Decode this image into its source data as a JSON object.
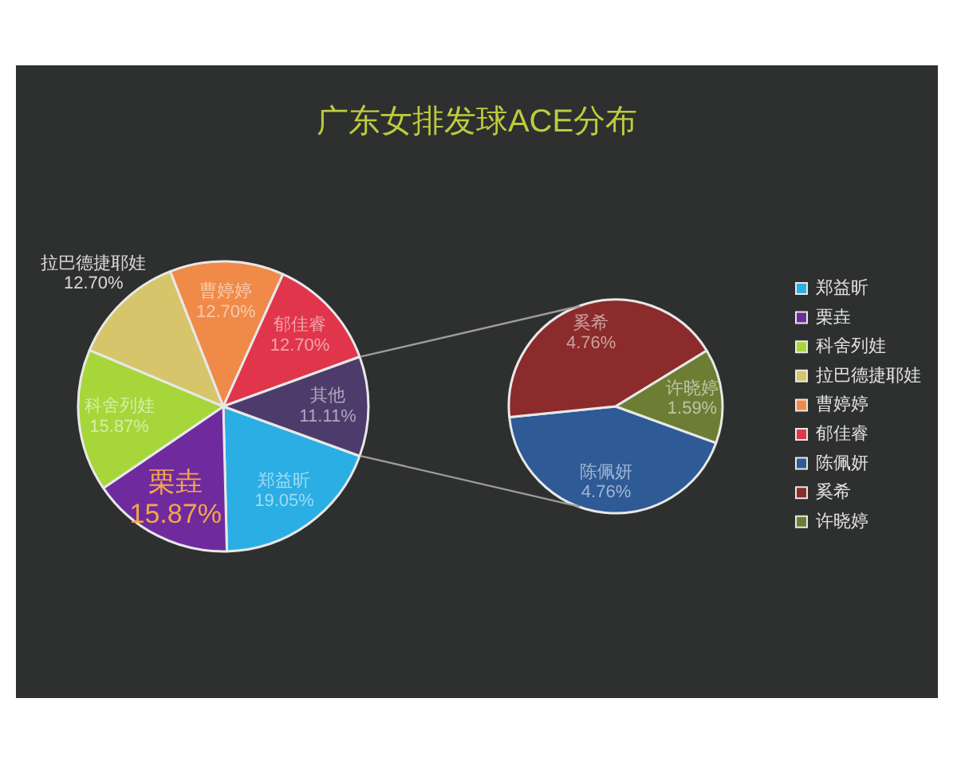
{
  "chart_data": [
    {
      "type": "pie",
      "title": "广东女排发球ACE分布",
      "categories": [
        "郑益昕",
        "栗垚",
        "科舍列娃",
        "拉巴德捷耶娃",
        "曹婷婷",
        "郁佳睿",
        "其他"
      ],
      "values": [
        19.05,
        15.87,
        15.87,
        12.7,
        12.7,
        12.7,
        11.11
      ],
      "colors": [
        "#2aaee4",
        "#6f2b9e",
        "#a6d63a",
        "#d6c56a",
        "#f08a48",
        "#e0354b",
        "#4c3b6b"
      ],
      "value_labels": [
        "19.05%",
        "15.87%",
        "15.87%",
        "12.70%",
        "12.70%",
        "12.70%",
        "11.11%"
      ],
      "legend": "right"
    },
    {
      "type": "pie",
      "categories": [
        "陈佩妍",
        "奚希",
        "许晓婷"
      ],
      "values": [
        4.76,
        4.76,
        1.59
      ],
      "colors": [
        "#2e5a96",
        "#8c2b2b",
        "#6d7e34"
      ],
      "value_labels": [
        "4.76%",
        "4.76%",
        "1.59%"
      ],
      "legend": "right"
    }
  ]
}
